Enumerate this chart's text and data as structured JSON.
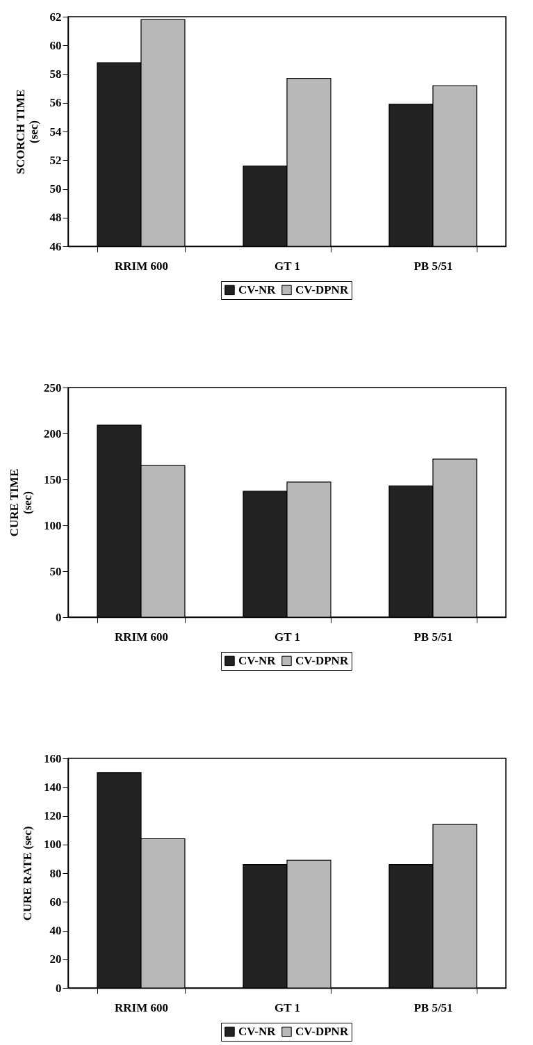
{
  "chart_data": [
    {
      "type": "bar",
      "ylabel": "SCORCH TIME\n(sec)",
      "categories": [
        "RRIM 600",
        "GT 1",
        "PB 5/51"
      ],
      "series": [
        {
          "name": "CV-NR",
          "color": "#222222",
          "values": [
            58.8,
            51.6,
            55.9
          ]
        },
        {
          "name": "CV-DPNR",
          "color": "#b8b8b8",
          "values": [
            61.8,
            57.7,
            57.2
          ]
        }
      ],
      "ylim": [
        46,
        62
      ],
      "yticks": [
        46,
        48,
        50,
        52,
        54,
        56,
        58,
        60,
        62
      ],
      "grid": false,
      "legend": "bottom"
    },
    {
      "type": "bar",
      "ylabel": "CURE TIME\n(sec)",
      "categories": [
        "RRIM 600",
        "GT 1",
        "PB 5/51"
      ],
      "series": [
        {
          "name": "CV-NR",
          "color": "#222222",
          "values": [
            209,
            137,
            143
          ]
        },
        {
          "name": "CV-DPNR",
          "color": "#b8b8b8",
          "values": [
            165,
            147,
            172
          ]
        }
      ],
      "ylim": [
        0,
        250
      ],
      "yticks": [
        0,
        50,
        100,
        150,
        200,
        250
      ],
      "grid": false,
      "legend": "bottom"
    },
    {
      "type": "bar",
      "ylabel": "CURE RATE (sec)",
      "categories": [
        "RRIM 600",
        "GT 1",
        "PB 5/51"
      ],
      "series": [
        {
          "name": "CV-NR",
          "color": "#222222",
          "values": [
            150,
            86,
            86
          ]
        },
        {
          "name": "CV-DPNR",
          "color": "#b8b8b8",
          "values": [
            104,
            89,
            114
          ]
        }
      ],
      "ylim": [
        0,
        160
      ],
      "yticks": [
        0,
        20,
        40,
        60,
        80,
        100,
        120,
        140,
        160
      ],
      "grid": false,
      "legend": "bottom"
    }
  ]
}
